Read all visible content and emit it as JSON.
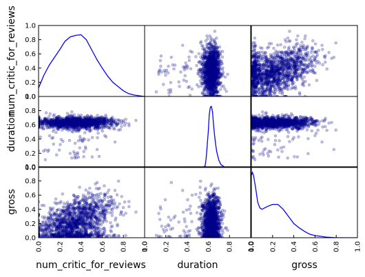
{
  "chart_data": {
    "type": "scatter",
    "kind": "scatter_matrix",
    "variables": [
      "num_critic_for_reviews",
      "duration",
      "gross"
    ],
    "axis_range": [
      0.0,
      1.0
    ],
    "tick_labels": [
      "0.0",
      "0.2",
      "0.4",
      "0.6",
      "0.8",
      "1.0"
    ],
    "grid": false,
    "legend": "none",
    "colors": {
      "point": "#00008b",
      "kde": "#0000ff",
      "axis": "#000000"
    },
    "diagonal_kde": {
      "num_critic_for_reviews": {
        "x": [
          0.0,
          0.05,
          0.1,
          0.15,
          0.2,
          0.25,
          0.3,
          0.35,
          0.4,
          0.45,
          0.5,
          0.55,
          0.6,
          0.65,
          0.7,
          0.75,
          0.8,
          0.85,
          0.9,
          0.95,
          1.0
        ],
        "y": [
          0.12,
          0.3,
          0.44,
          0.55,
          0.66,
          0.78,
          0.84,
          0.86,
          0.87,
          0.8,
          0.66,
          0.52,
          0.4,
          0.29,
          0.2,
          0.14,
          0.08,
          0.04,
          0.02,
          0.01,
          0.0
        ]
      },
      "duration": {
        "x": [
          0.0,
          0.3,
          0.4,
          0.45,
          0.5,
          0.52,
          0.55,
          0.57,
          0.58,
          0.6,
          0.61,
          0.62,
          0.63,
          0.64,
          0.65,
          0.66,
          0.67,
          0.68,
          0.7,
          0.72,
          0.75,
          0.8,
          0.9,
          1.0
        ],
        "y": [
          0.0,
          0.0,
          0.01,
          0.0,
          0.01,
          0.0,
          0.0,
          0.02,
          0.12,
          0.5,
          0.75,
          0.85,
          0.86,
          0.78,
          0.6,
          0.45,
          0.32,
          0.22,
          0.1,
          0.04,
          0.01,
          0.0,
          0.0,
          0.0
        ]
      },
      "gross": {
        "x": [
          0.0,
          0.01,
          0.02,
          0.04,
          0.06,
          0.08,
          0.1,
          0.15,
          0.2,
          0.25,
          0.3,
          0.35,
          0.4,
          0.45,
          0.5,
          0.55,
          0.6,
          0.65,
          0.7,
          0.8,
          1.0
        ],
        "y": [
          0.88,
          0.92,
          0.88,
          0.7,
          0.5,
          0.42,
          0.4,
          0.44,
          0.47,
          0.47,
          0.4,
          0.3,
          0.2,
          0.14,
          0.09,
          0.05,
          0.03,
          0.02,
          0.01,
          0.0,
          0.0
        ]
      }
    },
    "scatter_clusters": {
      "duration": {
        "center": 0.63,
        "spread": 0.04,
        "tail_low": 0.05
      },
      "num_critic_for_reviews": {
        "center": 0.35,
        "spread": 0.18
      },
      "gross": {
        "center": 0.18,
        "spread": 0.16
      }
    }
  }
}
